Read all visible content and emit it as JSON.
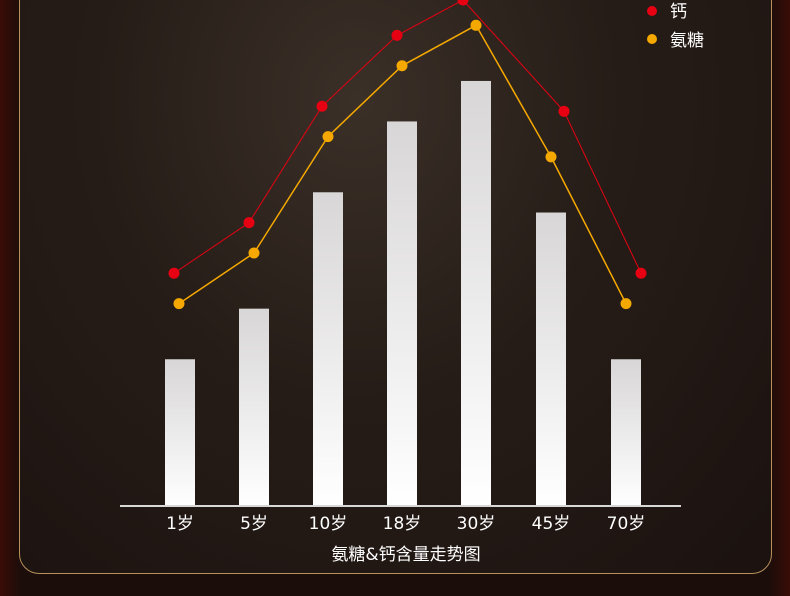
{
  "chart_data": {
    "type": "bar",
    "title": "氨糖&钙含量走势图",
    "categories": [
      "1岁",
      "5岁",
      "10岁",
      "18岁",
      "30岁",
      "45岁",
      "70岁"
    ],
    "ylim": [
      0,
      100
    ],
    "grid": false,
    "values": [
      29,
      39,
      62,
      76,
      84,
      58,
      29
    ],
    "series": [
      {
        "name": "钙",
        "type": "line",
        "color": "#e60012",
        "values": [
          46,
          56,
          79,
          93,
          100,
          78,
          46
        ]
      },
      {
        "name": "氨糖",
        "type": "line",
        "color": "#f5a800",
        "values": [
          40,
          50,
          73,
          87,
          95,
          69,
          40
        ]
      }
    ],
    "legend_placement": "top-right"
  }
}
